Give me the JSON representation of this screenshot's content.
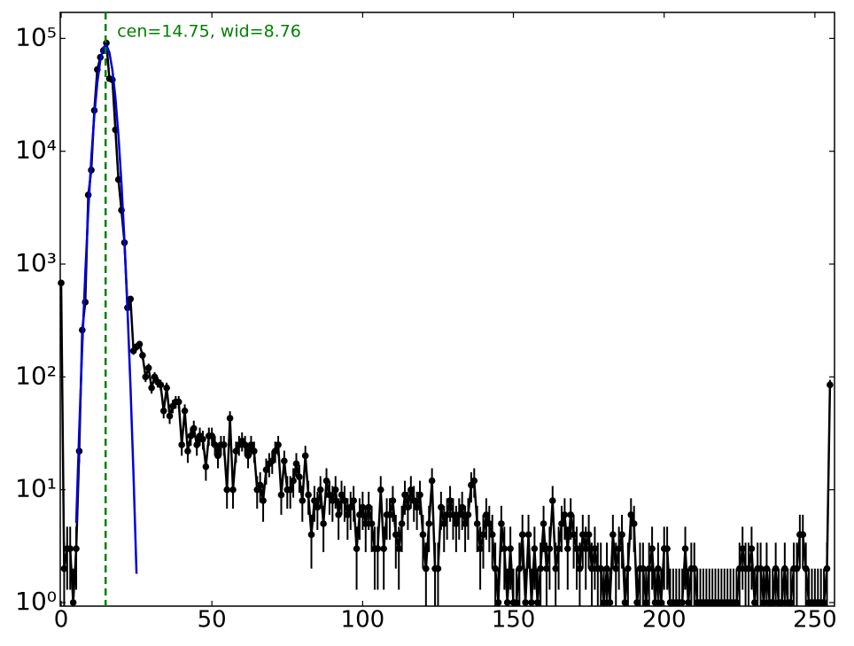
{
  "chart_data": {
    "type": "errorbar",
    "log_y": true,
    "xlim": [
      -0.3,
      256.5
    ],
    "ylim": [
      0.93,
      170000
    ],
    "xticks": [
      0,
      50,
      100,
      150,
      200,
      250
    ],
    "yticks": [
      {
        "value": 1,
        "label": "10⁰"
      },
      {
        "value": 10,
        "label": "10¹"
      },
      {
        "value": 100,
        "label": "10²"
      },
      {
        "value": 1000,
        "label": "10³"
      },
      {
        "value": 10000,
        "label": "10⁴"
      },
      {
        "value": 100000,
        "label": "10⁵"
      }
    ],
    "vline": {
      "x": 14.75,
      "color": "#008000",
      "label": "cen=14.75, wid=8.76"
    },
    "fit": {
      "color": "#0000dd",
      "x": [
        5,
        6,
        7,
        8,
        9,
        10,
        11,
        12,
        13,
        14,
        15,
        16,
        17,
        18,
        19,
        20,
        21,
        22,
        23,
        24,
        25
      ],
      "values": [
        5.1,
        34,
        186,
        820,
        2970,
        8700,
        20800,
        40500,
        64300,
        83000,
        87400,
        75000,
        52400,
        29800,
        13800,
        5200,
        1600,
        400,
        82,
        13.6,
        1.8
      ]
    },
    "series": [
      {
        "color": "#000000",
        "x": [
          0,
          1,
          2,
          3,
          4,
          5,
          6,
          7,
          8,
          9,
          10,
          11,
          12,
          13,
          14,
          15,
          16,
          17,
          18,
          19,
          20,
          21,
          22,
          23,
          24,
          25,
          26,
          27,
          28,
          29,
          30,
          31,
          32,
          33,
          34,
          35,
          36,
          37,
          38,
          39,
          40,
          41,
          42,
          43,
          44,
          45,
          46,
          47,
          48,
          49,
          50,
          51,
          52,
          53,
          54,
          55,
          56,
          57,
          58,
          59,
          60,
          61,
          62,
          63,
          64,
          65,
          66,
          67,
          68,
          69,
          70,
          71,
          72,
          73,
          74,
          75,
          76,
          77,
          78,
          79,
          80,
          81,
          82,
          83,
          84,
          85,
          86,
          87,
          88,
          89,
          90,
          91,
          92,
          93,
          94,
          95,
          96,
          97,
          98,
          99,
          100,
          101,
          102,
          103,
          104,
          105,
          106,
          107,
          108,
          109,
          110,
          111,
          112,
          113,
          114,
          115,
          116,
          117,
          118,
          119,
          120,
          121,
          122,
          123,
          124,
          125,
          126,
          127,
          128,
          129,
          130,
          131,
          132,
          133,
          134,
          135,
          136,
          137,
          138,
          139,
          140,
          141,
          142,
          143,
          144,
          145,
          146,
          147,
          148,
          149,
          150,
          151,
          152,
          153,
          154,
          155,
          156,
          157,
          158,
          159,
          160,
          161,
          162,
          163,
          164,
          165,
          166,
          167,
          168,
          169,
          170,
          171,
          172,
          173,
          174,
          175,
          176,
          177,
          178,
          179,
          180,
          181,
          182,
          183,
          184,
          185,
          186,
          187,
          188,
          189,
          190,
          191,
          192,
          193,
          194,
          195,
          196,
          197,
          198,
          199,
          200,
          201,
          202,
          203,
          204,
          205,
          206,
          207,
          208,
          209,
          210,
          211,
          212,
          213,
          214,
          215,
          216,
          217,
          218,
          219,
          220,
          221,
          222,
          223,
          224,
          225,
          226,
          227,
          228,
          229,
          230,
          231,
          232,
          233,
          234,
          235,
          236,
          237,
          238,
          239,
          240,
          241,
          242,
          243,
          244,
          245,
          246,
          247,
          248,
          249,
          250,
          251,
          252,
          253,
          254,
          255
        ],
        "values": [
          680,
          2,
          3,
          3,
          1,
          3,
          22,
          260,
          460,
          4100,
          6800,
          23000,
          53000,
          68000,
          78000,
          91000,
          44000,
          43000,
          15500,
          5600,
          3000,
          1550,
          410,
          490,
          170,
          185,
          195,
          155,
          100,
          120,
          80,
          100,
          90,
          85,
          50,
          80,
          45,
          55,
          60,
          60,
          25,
          50,
          22,
          30,
          35,
          25,
          30,
          28,
          16,
          30,
          30,
          25,
          20,
          25,
          25,
          10,
          43,
          10,
          22,
          25,
          27,
          25,
          20,
          25,
          22,
          10,
          11,
          8,
          15,
          17,
          18,
          22,
          25,
          9,
          18,
          10,
          10,
          12,
          17,
          13,
          8,
          20,
          9,
          4,
          8,
          7,
          10,
          5,
          12,
          9,
          8,
          10,
          6,
          9,
          8,
          6,
          7,
          8,
          3,
          6,
          7,
          5,
          7,
          5,
          3,
          3,
          10,
          3,
          6,
          6,
          8,
          4,
          3,
          5,
          9,
          7,
          10,
          8,
          7,
          9,
          4,
          2,
          5,
          12,
          2,
          2,
          7,
          5,
          6,
          8,
          6,
          5,
          6,
          7,
          5,
          6,
          11,
          12,
          5,
          3,
          4,
          6,
          5,
          4,
          2,
          1,
          5,
          3,
          1,
          3,
          1,
          1,
          2,
          4,
          1,
          4,
          1,
          3,
          1,
          2,
          5,
          2,
          3,
          8,
          2,
          3,
          5,
          6,
          3,
          6,
          4,
          3,
          2,
          4,
          3,
          4,
          2,
          3,
          2,
          2,
          1,
          2,
          1,
          4,
          2,
          3,
          4,
          1,
          2,
          6,
          5,
          1,
          2,
          2,
          1,
          2,
          3,
          1,
          2,
          1,
          3,
          3,
          1,
          1,
          1,
          1,
          1,
          3,
          1,
          2,
          2,
          1,
          1,
          1,
          1,
          1,
          1,
          1,
          1,
          1,
          1,
          1,
          1,
          1,
          1,
          2,
          3,
          2,
          2,
          3,
          1,
          2,
          2,
          1,
          2,
          1,
          1,
          2,
          1,
          1,
          2,
          1,
          1,
          2,
          2,
          4,
          4,
          2,
          1,
          1,
          1,
          1,
          1,
          1,
          2,
          85
        ],
        "errors": [
          26.1,
          1.4,
          1.7,
          1.7,
          1,
          1.7,
          4.7,
          16.1,
          21.4,
          64,
          82.5,
          151.7,
          230.2,
          260.8,
          279.3,
          301.7,
          209.8,
          207.4,
          124.5,
          74.8,
          54.8,
          39.4,
          20.2,
          22.1,
          13,
          13.6,
          14,
          12.4,
          10,
          11,
          8.9,
          10,
          9.5,
          9.2,
          7.1,
          8.9,
          6.7,
          7.4,
          7.7,
          7.7,
          5,
          7.1,
          4.7,
          5.5,
          5.9,
          5,
          5.5,
          5.3,
          4,
          5.5,
          5.5,
          5,
          4.5,
          5,
          5,
          3.2,
          6.6,
          3.2,
          4.7,
          5,
          5.2,
          5,
          4.5,
          5,
          4.7,
          3.2,
          3.3,
          2.8,
          3.9,
          4.1,
          4.2,
          4.7,
          5,
          3,
          4.2,
          3.2,
          3.2,
          3.5,
          4.1,
          3.6,
          2.8,
          4.5,
          3,
          2,
          2.8,
          2.6,
          3.2,
          2.2,
          3.5,
          3,
          2.8,
          3.2,
          2.4,
          3,
          2.8,
          2.4,
          2.6,
          2.8,
          1.7,
          2.4,
          2.6,
          2.2,
          2.6,
          2.2,
          1.7,
          1.7,
          3.2,
          1.7,
          2.4,
          2.4,
          2.8,
          2,
          1.7,
          2.2,
          3,
          2.6,
          3.2,
          2.8,
          2.6,
          3,
          2,
          1.4,
          2.2,
          3.5,
          1.4,
          1.4,
          2.6,
          2.2,
          2.4,
          2.8,
          2.4,
          2.2,
          2.4,
          2.6,
          2.2,
          2.4,
          3.3,
          3.5,
          2.2,
          1.7,
          2,
          2.4,
          2.2,
          2,
          1.4,
          1,
          2.2,
          1.7,
          1,
          1.7,
          1,
          1,
          1.4,
          2,
          1,
          2,
          1,
          1.7,
          1,
          1.4,
          2.2,
          1.4,
          1.7,
          2.8,
          1.4,
          1.7,
          2.2,
          2.4,
          1.7,
          2.4,
          2,
          1.7,
          1.4,
          2,
          1.7,
          2,
          1.4,
          1.7,
          1.4,
          1.4,
          1,
          1.4,
          1,
          2,
          1.4,
          1.7,
          2,
          1,
          1.4,
          2.4,
          2.2,
          1,
          1.4,
          1.4,
          1,
          1.4,
          1.7,
          1,
          1.4,
          1,
          1.7,
          1.7,
          1,
          1,
          1,
          1,
          1,
          1.7,
          1,
          1.4,
          1.4,
          1,
          1,
          1,
          1,
          1,
          1,
          1,
          1,
          1,
          1,
          1,
          1,
          1,
          1,
          1.4,
          1.7,
          1.4,
          1.4,
          1.7,
          1,
          1.4,
          1.4,
          1,
          1.4,
          1,
          1,
          1.4,
          1,
          1,
          1.4,
          1,
          1,
          1.4,
          1.4,
          2,
          2,
          1.4,
          1,
          1,
          1,
          1,
          1,
          1,
          1.4,
          9.2
        ]
      }
    ]
  }
}
